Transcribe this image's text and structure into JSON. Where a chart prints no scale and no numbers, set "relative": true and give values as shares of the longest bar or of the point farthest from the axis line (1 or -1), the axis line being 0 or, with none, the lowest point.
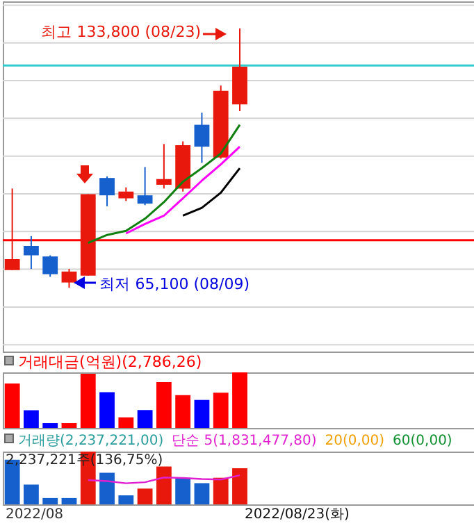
{
  "chart_data": [
    {
      "type": "candlestick",
      "categories": [
        null,
        null,
        null,
        null,
        null,
        null,
        null,
        null,
        null,
        null,
        null,
        null,
        null
      ],
      "ohlc": [
        [
          69800,
          91400,
          69800,
          72700
        ],
        [
          76200,
          78800,
          70100,
          73700
        ],
        [
          73400,
          73700,
          68000,
          68700
        ],
        [
          66500,
          70100,
          65100,
          69400
        ],
        [
          68300,
          89900,
          68300,
          89900
        ],
        [
          94200,
          94600,
          86700,
          89600
        ],
        [
          88800,
          91700,
          88100,
          90600
        ],
        [
          89600,
          97100,
          87000,
          87400
        ],
        [
          92400,
          103200,
          91400,
          93900
        ],
        [
          91400,
          103900,
          90600,
          102900
        ],
        [
          108300,
          111500,
          98200,
          102500
        ],
        [
          99600,
          118700,
          99300,
          117300
        ],
        [
          113700,
          133800,
          111900,
          123700
        ]
      ],
      "colors": [
        "#e8190c",
        "#1560cc",
        "#1560cc",
        "#e8190c",
        "#e8190c",
        "#1560cc",
        "#e8190c",
        "#1560cc",
        "#e8190c",
        "#e8190c",
        "#1560cc",
        "#e8190c",
        "#e8190c"
      ],
      "series": [
        {
          "type": "line",
          "color": "#108010",
          "values": [
            null,
            null,
            null,
            null,
            77000,
            79100,
            80200,
            83400,
            87800,
            93200,
            96800,
            100700,
            108300
          ]
        },
        {
          "type": "line",
          "color": "#ff00ff",
          "values": [
            null,
            null,
            null,
            null,
            null,
            null,
            79500,
            82000,
            84200,
            88800,
            93500,
            97800,
            102500
          ]
        },
        {
          "type": "line",
          "color": "#000000",
          "values": [
            null,
            null,
            null,
            null,
            null,
            null,
            null,
            null,
            null,
            84200,
            86300,
            90300,
            96800
          ]
        }
      ],
      "ylim": [
        48200,
        141000
      ],
      "yticks": [
        {
          "value": 50000,
          "label": null
        },
        {
          "value": 60000,
          "label": null
        },
        {
          "value": 70000,
          "label": null
        },
        {
          "value": 80000,
          "label": null
        },
        {
          "value": 90000,
          "label": null
        },
        {
          "value": 100000,
          "label": null
        },
        {
          "value": 110000,
          "label": null
        },
        {
          "value": 120000,
          "label": null
        },
        {
          "value": 130000,
          "label": null
        },
        {
          "value": 140000,
          "label": null
        }
      ],
      "grid": "y",
      "tick_labels": false,
      "ref_lines": [
        {
          "axis": "y",
          "value": 124000,
          "color": "#33cccc"
        },
        {
          "axis": "y",
          "value": 77700,
          "color": "#ff0000"
        }
      ],
      "annotations": [
        "최고 133,800 (08/23)",
        "최저 65,100 (08/09)"
      ]
    },
    {
      "type": "bar",
      "relative": true,
      "title": "거래대금(억원)(2,786,26)",
      "tick_labels": false,
      "categories": [
        null,
        null,
        null,
        null,
        null,
        null,
        null,
        null,
        null,
        null,
        null,
        null,
        null
      ],
      "values": [
        0.8,
        0.32,
        0.087,
        0.087,
        0.974,
        0.643,
        0.191,
        0.322,
        0.826,
        0.591,
        0.504,
        0.635,
        1
      ],
      "colors": [
        "#ff0000",
        "#0000ff",
        "#0000ff",
        "#ff0000",
        "#ff0000",
        "#0000ff",
        "#ff0000",
        "#0000ff",
        "#ff0000",
        "#ff0000",
        "#0000ff",
        "#ff0000",
        "#ff0000"
      ]
    },
    {
      "type": "bar",
      "relative": true,
      "tick_labels": false,
      "legend_title": "거래량(2,237,221,00)",
      "categories": [
        null,
        null,
        null,
        null,
        null,
        null,
        null,
        null,
        null,
        null,
        null,
        null,
        null
      ],
      "series": [
        {
          "type": "bar",
          "colors": [
            "#1560cc",
            "#1560cc",
            "#1560cc",
            "#1560cc",
            "#e8190c",
            "#1560cc",
            "#1560cc",
            "#e8190c",
            "#e8190c",
            "#1560cc",
            "#1560cc",
            "#e8190c",
            "#e8190c"
          ],
          "values": [
            0.846,
            0.376,
            0.12,
            0.12,
            1,
            0.598,
            0.171,
            0.299,
            0.718,
            0.504,
            0.402,
            0.504,
            0.684
          ]
        },
        {
          "type": "line",
          "name": "단순 5(1,831,477,80)",
          "color": "#e020d0",
          "values": [
            null,
            null,
            null,
            null,
            0.46,
            0.44,
            0.4,
            0.42,
            0.51,
            0.5,
            0.48,
            0.47,
            0.55
          ]
        },
        {
          "type": "line",
          "name": "20(0,00)",
          "color": "#f0a000",
          "values": [
            null,
            null,
            null,
            null,
            null,
            null,
            null,
            null,
            null,
            null,
            null,
            null,
            null
          ]
        },
        {
          "type": "line",
          "name": "60(0,00)",
          "color": "#109030",
          "values": [
            null,
            null,
            null,
            null,
            null,
            null,
            null,
            null,
            null,
            null,
            null,
            null,
            null
          ]
        }
      ],
      "annotations": [
        "2,237,221주(136,75%)",
        "2022/08",
        "2022/08/23(화)"
      ]
    }
  ]
}
